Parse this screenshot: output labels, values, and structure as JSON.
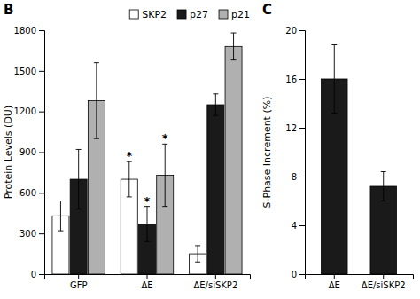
{
  "chart_data": [
    {
      "type": "bar",
      "title": "B",
      "categories": [
        "GFP",
        "ΔE",
        "ΔE/siSKP2"
      ],
      "series": [
        {
          "name": "SKP2",
          "color": "white",
          "values": [
            430,
            700,
            150
          ],
          "errors": [
            110,
            130,
            60
          ]
        },
        {
          "name": "p27",
          "color": "#1a1a1a",
          "values": [
            700,
            370,
            1250
          ],
          "errors": [
            220,
            130,
            80
          ]
        },
        {
          "name": "p21",
          "color": "#b0b0b0",
          "values": [
            1280,
            730,
            1680
          ],
          "errors": [
            280,
            230,
            100
          ]
        }
      ],
      "ylabel": "Protein Levels (DU)",
      "ylim": [
        0,
        1800
      ],
      "yticks": [
        0,
        300,
        600,
        900,
        1200,
        1500,
        1800
      ],
      "legend": "upper right",
      "annotations": [
        {
          "text": "*",
          "category": "ΔE",
          "series": "SKP2"
        },
        {
          "text": "*",
          "category": "ΔE",
          "series": "p27"
        },
        {
          "text": "*",
          "category": "ΔE",
          "series": "p21"
        }
      ]
    },
    {
      "type": "bar",
      "title": "C",
      "categories": [
        "ΔE",
        "ΔE/siSKP2"
      ],
      "values": [
        16.0,
        7.2
      ],
      "errors": [
        2.8,
        1.2
      ],
      "color": "#1a1a1a",
      "ylabel": "S-Phase Increment (%)",
      "ylim": [
        0,
        20
      ],
      "yticks": [
        0,
        4,
        8,
        12,
        16,
        20
      ]
    }
  ]
}
